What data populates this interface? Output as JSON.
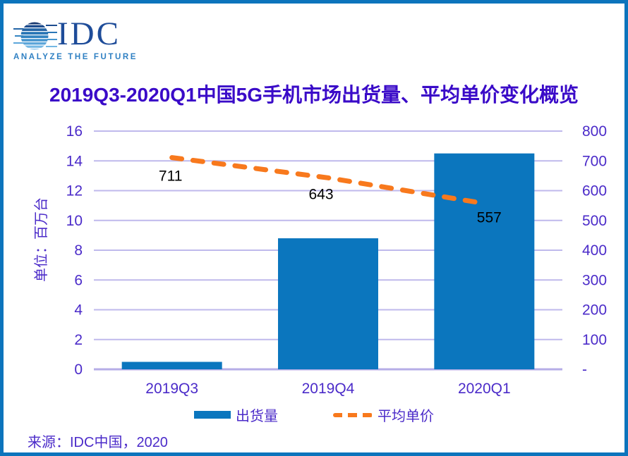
{
  "logo": {
    "name": "IDC",
    "tagline": "ANALYZE THE FUTURE"
  },
  "title": "2019Q3-2020Q1中国5G手机市场出货量、平均单价变化概览",
  "source": "来源：IDC中国，2020",
  "colors": {
    "border": "#0C74BC",
    "title_text": "#3A0AC8",
    "axis_text": "#4B2BC9",
    "gridline": "#BFB9EC",
    "baseline": "#B6ADE7",
    "bar": "#0B76BE",
    "line": "#F8791D",
    "data_label": "#000000",
    "logo_name": "#1E4C99",
    "logo_tagline": "#2F80C3"
  },
  "chart_data": {
    "type": "combo",
    "categories": [
      "2019Q3",
      "2019Q4",
      "2020Q1"
    ],
    "series": [
      {
        "name": "出货量",
        "type": "bar",
        "axis": "left",
        "values": [
          0.5,
          8.8,
          14.5
        ],
        "color": "#0B76BE"
      },
      {
        "name": "平均单价",
        "type": "line",
        "axis": "right",
        "values": [
          711,
          643,
          557
        ],
        "color": "#F8791D",
        "style": "dashed",
        "data_labels": [
          "711",
          "643",
          "557"
        ]
      }
    ],
    "left_axis": {
      "label": "单位：百万台",
      "min": 0,
      "max": 16,
      "step": 2,
      "ticks": [
        "0",
        "2",
        "4",
        "6",
        "8",
        "10",
        "12",
        "14",
        "16"
      ]
    },
    "right_axis": {
      "min": 0,
      "max": 800,
      "step": 100,
      "ticks": [
        "-",
        "100",
        "200",
        "300",
        "400",
        "500",
        "600",
        "700",
        "800"
      ]
    },
    "grid": true,
    "legend_position": "bottom"
  }
}
